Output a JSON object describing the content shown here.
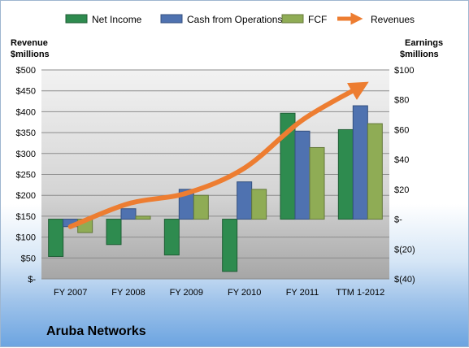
{
  "legend": {
    "net_income": "Net Income",
    "cash_from_operations": "Cash from Operations",
    "fcf": "FCF",
    "revenues": "Revenues"
  },
  "left_axis_title": [
    "Revenue",
    "$millions"
  ],
  "right_axis_title": [
    "Earnings",
    "$millions"
  ],
  "company": "Aruba Networks",
  "colors": {
    "net_income": "#2e8b4f",
    "cash_from_operations": "#4f72b0",
    "fcf": "#8fac55",
    "revenues": "#ed7d31"
  },
  "chart_data": {
    "type": "bar",
    "categories": [
      "FY 2007",
      "FY 2008",
      "FY 2009",
      "FY 2010",
      "FY 2011",
      "TTM 1-2012"
    ],
    "left_axis": {
      "ylim": [
        0,
        500
      ],
      "ticks": [
        0,
        50,
        100,
        150,
        200,
        250,
        300,
        350,
        400,
        450,
        500
      ],
      "tick_labels": [
        "$-",
        "$50",
        "$100",
        "$150",
        "$200",
        "$250",
        "$300",
        "$350",
        "$400",
        "$450",
        "$500"
      ]
    },
    "right_axis": {
      "ylim": [
        -40,
        100
      ],
      "ticks": [
        -40,
        -20,
        0,
        20,
        40,
        60,
        80,
        100
      ],
      "tick_labels": [
        "$(40)",
        "$(20)",
        "$-",
        "$20",
        "$40",
        "$60",
        "$80",
        "$100"
      ]
    },
    "series": [
      {
        "name": "Net Income",
        "axis": "right",
        "values": [
          -25,
          -17,
          -24,
          -35,
          71,
          60
        ]
      },
      {
        "name": "Cash from Operations",
        "axis": "right",
        "values": [
          -5,
          7,
          20,
          25,
          59,
          76
        ]
      },
      {
        "name": "FCF",
        "axis": "right",
        "values": [
          -9,
          2,
          16,
          20,
          48,
          64
        ]
      },
      {
        "name": "Revenues",
        "axis": "left",
        "type": "line",
        "values": [
          125,
          180,
          205,
          265,
          380,
          460
        ]
      }
    ]
  }
}
